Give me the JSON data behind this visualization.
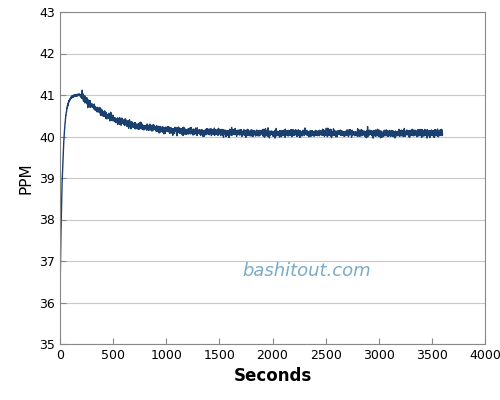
{
  "title": "",
  "xlabel": "Seconds",
  "ylabel": "PPM",
  "watermark": "bashitout.com",
  "watermark_color": "#7aabca",
  "line_color": "#1a4070",
  "background_color": "#ffffff",
  "xlim": [
    0,
    4000
  ],
  "ylim": [
    35,
    43
  ],
  "xticks": [
    0,
    500,
    1000,
    1500,
    2000,
    2500,
    3000,
    3500,
    4000
  ],
  "yticks": [
    35,
    36,
    37,
    38,
    39,
    40,
    41,
    42,
    43
  ],
  "grid_color": "#c8c8c8",
  "figsize": [
    5.0,
    4.0
  ],
  "dpi": 100,
  "y_start": 36.2,
  "y_peak": 41.0,
  "t_peak": 195,
  "y_final": 40.08,
  "tau_decay": 320,
  "noise_amplitude": 0.04,
  "t_max": 3600
}
